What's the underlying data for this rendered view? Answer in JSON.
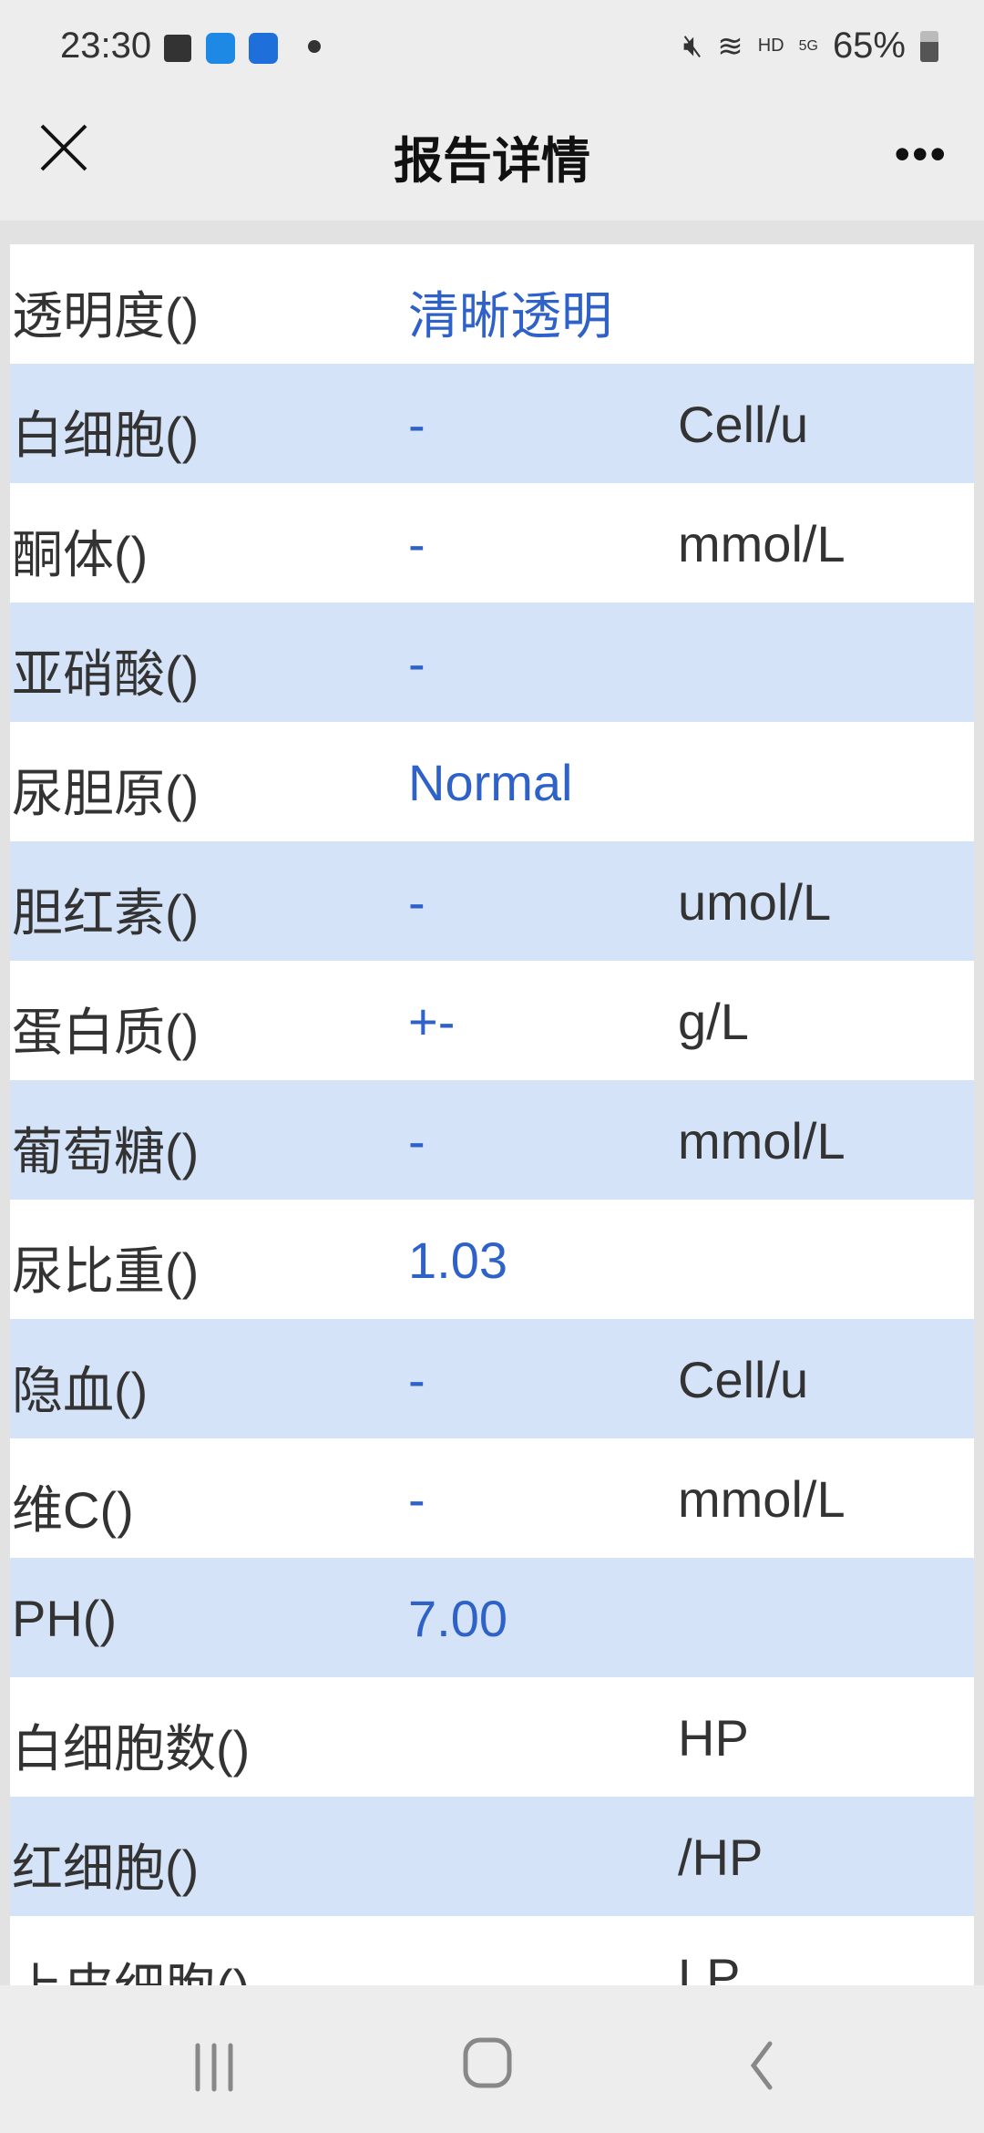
{
  "status_bar": {
    "time": "23:30",
    "battery": "65%",
    "network": "5G",
    "hd": "HD"
  },
  "header": {
    "title": "报告详情"
  },
  "rows": [
    {
      "name": "透明度()",
      "value": "清晰透明",
      "unit": ""
    },
    {
      "name": "白细胞()",
      "value": "-",
      "unit": "Cell/u"
    },
    {
      "name": "酮体()",
      "value": "-",
      "unit": "mmol/L"
    },
    {
      "name": "亚硝酸()",
      "value": "-",
      "unit": ""
    },
    {
      "name": "尿胆原()",
      "value": "Normal",
      "unit": ""
    },
    {
      "name": "胆红素()",
      "value": "-",
      "unit": "umol/L"
    },
    {
      "name": "蛋白质()",
      "value": "+-",
      "unit": "g/L"
    },
    {
      "name": "葡萄糖()",
      "value": "-",
      "unit": "mmol/L"
    },
    {
      "name": "尿比重()",
      "value": "1.03",
      "unit": ""
    },
    {
      "name": "隐血()",
      "value": "-",
      "unit": "Cell/u"
    },
    {
      "name": "维C()",
      "value": "-",
      "unit": "mmol/L"
    },
    {
      "name": "PH()",
      "value": "7.00",
      "unit": ""
    },
    {
      "name": "白细胞数()",
      "value": "",
      "unit": "HP"
    },
    {
      "name": "红细胞()",
      "value": "",
      "unit": "/HP"
    },
    {
      "name": "上皮细胞()",
      "value": "",
      "unit": "LP"
    }
  ],
  "colors": {
    "value": "#2f62c8",
    "alt_row": "#d4e3f7"
  }
}
